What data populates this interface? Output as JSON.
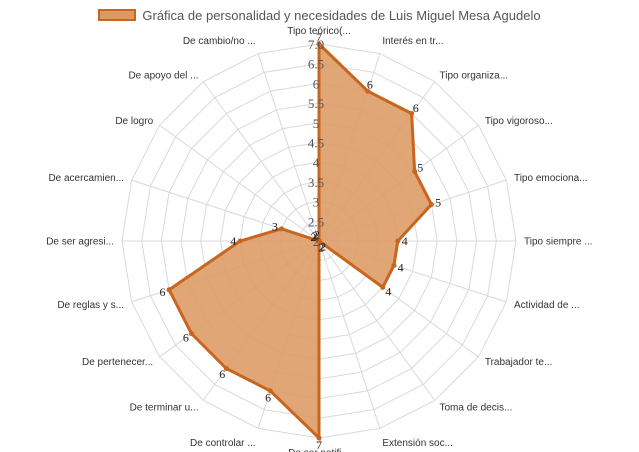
{
  "chart_data": {
    "type": "radar",
    "title": "",
    "categories": [
      "Tipo teórico(...",
      "Interés en tr...",
      "Tipo organiza...",
      "Tipo vigoroso...",
      "Tipo emociona...",
      "Tipo siempre ...",
      "Actividad de ...",
      "Trabajador te...",
      "Toma de decis...",
      "Extensión soc...",
      "De ser notifi...",
      "De controlar ...",
      "De terminar u...",
      "De pertenecer...",
      "De reglas y s...",
      "De ser agresi...",
      "De acercamien...",
      "De logro",
      "De apoyo del ...",
      "De cambio/no ..."
    ],
    "series": [
      {
        "name": "Gráfica de personalidad y necesidades de Luis Miguel Mesa Agudelo",
        "values": [
          7,
          6,
          6,
          5,
          5,
          4,
          4,
          4,
          2,
          2,
          7,
          6,
          6,
          6,
          6,
          4,
          3,
          2,
          2,
          2
        ]
      }
    ],
    "r_range": [
      2,
      7
    ],
    "r_ticks": [
      "2",
      "2.5",
      "3",
      "3.5",
      "4",
      "4.5",
      "5",
      "5.5",
      "6",
      "6.5",
      "7.0"
    ],
    "grid": true,
    "legend_position": "top",
    "colors": {
      "fill": "#DC9A63",
      "stroke": "#C8651E",
      "grid": "#D9D9D9",
      "legend_text": "#555555"
    }
  }
}
